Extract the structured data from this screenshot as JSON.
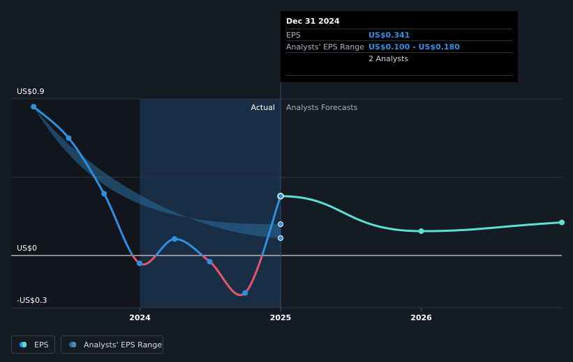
{
  "tooltip": {
    "date": "Dec 31 2024",
    "eps_label": "EPS",
    "eps_value": "US$0.341",
    "range_label": "Analysts' EPS Range",
    "range_value": "US$0.100 - US$0.180",
    "analysts": "2 Analysts"
  },
  "labels": {
    "actual": "Actual",
    "forecast": "Analysts Forecasts"
  },
  "legend": {
    "eps": "EPS",
    "range": "Analysts' EPS Range"
  },
  "colors": {
    "background": "#151b24",
    "eps_line": "#2f8fe0",
    "eps_negative": "#e0566a",
    "forecast_line": "#5ce0d0",
    "range_band": "#2a6e9a",
    "highlight_band": "#1b3550"
  },
  "chart_data": {
    "type": "line",
    "title": "",
    "xlabel": "",
    "ylabel": "",
    "x_ticks": [
      "2024",
      "2025",
      "2026"
    ],
    "y_ticks": [
      "US$0.9",
      "US$0",
      "-US$0.3"
    ],
    "ylim": [
      -0.3,
      0.9
    ],
    "series": [
      {
        "name": "EPS",
        "x": [
          "2023-03-31",
          "2023-06-30",
          "2023-09-30",
          "2023-12-31",
          "2024-03-31",
          "2024-06-30",
          "2024-09-30",
          "2024-12-31"
        ],
        "values": [
          0.855,
          0.675,
          0.355,
          -0.045,
          0.095,
          -0.035,
          -0.215,
          0.341
        ]
      },
      {
        "name": "Analysts Forecasts",
        "x": [
          "2024-12-31",
          "2025-12-31",
          "2026-12-31"
        ],
        "values": [
          0.341,
          0.14,
          0.19
        ]
      },
      {
        "name": "Analysts' EPS Range",
        "x": [
          "2024-12-31"
        ],
        "low": [
          0.1
        ],
        "high": [
          0.18
        ]
      }
    ],
    "legend_position": "bottom-left",
    "grid": true
  }
}
